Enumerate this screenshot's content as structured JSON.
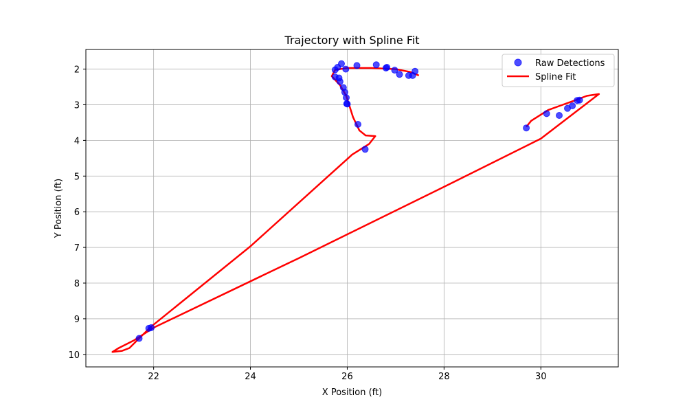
{
  "chart_data": {
    "type": "scatter",
    "title": "Trajectory with Spline Fit",
    "xlabel": "X Position (ft)",
    "ylabel": "Y Position (ft)",
    "xlim": [
      20.6,
      31.6
    ],
    "ylim": [
      10.35,
      1.45
    ],
    "y_inverted": true,
    "grid": true,
    "legend_position": "top-right",
    "x_ticks": [
      22,
      24,
      26,
      28,
      30
    ],
    "y_ticks": [
      2,
      3,
      4,
      5,
      6,
      7,
      8,
      9,
      10
    ],
    "series": [
      {
        "name": "Raw Detections",
        "kind": "scatter",
        "color": "#0000ff",
        "points": [
          [
            21.7,
            9.55
          ],
          [
            21.9,
            9.27
          ],
          [
            21.95,
            9.25
          ],
          [
            25.75,
            2.02
          ],
          [
            25.8,
            1.95
          ],
          [
            25.88,
            1.85
          ],
          [
            25.97,
            2.0
          ],
          [
            25.75,
            2.22
          ],
          [
            25.83,
            2.25
          ],
          [
            25.85,
            2.35
          ],
          [
            25.92,
            2.52
          ],
          [
            25.95,
            2.65
          ],
          [
            25.98,
            2.8
          ],
          [
            25.99,
            2.97
          ],
          [
            26.0,
            2.98
          ],
          [
            26.22,
            3.55
          ],
          [
            26.37,
            4.25
          ],
          [
            26.2,
            1.9
          ],
          [
            26.6,
            1.88
          ],
          [
            26.8,
            1.97
          ],
          [
            26.82,
            1.95
          ],
          [
            26.98,
            2.03
          ],
          [
            27.08,
            2.15
          ],
          [
            27.27,
            2.18
          ],
          [
            27.35,
            2.18
          ],
          [
            27.4,
            2.06
          ],
          [
            29.7,
            3.65
          ],
          [
            30.12,
            3.25
          ],
          [
            30.38,
            3.3
          ],
          [
            30.55,
            3.1
          ],
          [
            30.65,
            3.03
          ],
          [
            30.75,
            2.88
          ],
          [
            30.8,
            2.87
          ]
        ]
      },
      {
        "name": "Spline Fit",
        "kind": "line",
        "color": "#ff0000",
        "points": [
          [
            27.48,
            2.18
          ],
          [
            27.3,
            2.08
          ],
          [
            27.0,
            2.0
          ],
          [
            26.5,
            1.97
          ],
          [
            26.0,
            1.97
          ],
          [
            25.75,
            2.02
          ],
          [
            25.68,
            2.2
          ],
          [
            25.85,
            2.45
          ],
          [
            25.98,
            2.75
          ],
          [
            26.05,
            3.05
          ],
          [
            26.12,
            3.35
          ],
          [
            26.25,
            3.72
          ],
          [
            26.38,
            3.86
          ],
          [
            26.58,
            3.88
          ],
          [
            26.45,
            4.1
          ],
          [
            26.1,
            4.4
          ],
          [
            24.0,
            6.97
          ],
          [
            21.95,
            9.22
          ],
          [
            21.7,
            9.55
          ],
          [
            21.5,
            9.82
          ],
          [
            21.35,
            9.9
          ],
          [
            21.15,
            9.93
          ],
          [
            21.28,
            9.82
          ],
          [
            21.6,
            9.6
          ],
          [
            22.0,
            9.25
          ],
          [
            25.0,
            7.3
          ],
          [
            28.0,
            5.3
          ],
          [
            30.0,
            3.95
          ],
          [
            31.2,
            2.7
          ],
          [
            30.95,
            2.75
          ],
          [
            30.7,
            2.88
          ],
          [
            30.45,
            3.0
          ],
          [
            30.15,
            3.15
          ],
          [
            29.8,
            3.45
          ],
          [
            29.7,
            3.62
          ]
        ]
      }
    ]
  }
}
